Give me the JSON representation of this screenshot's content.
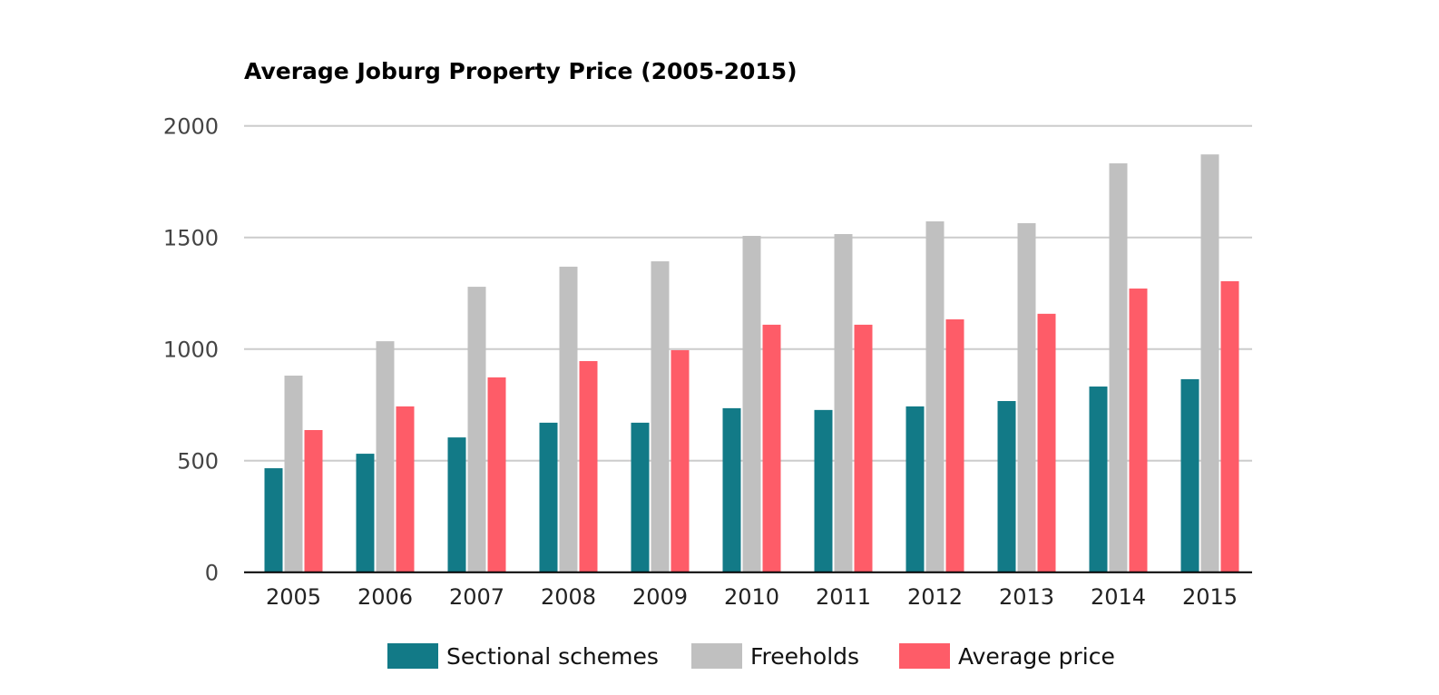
{
  "chart_data": {
    "type": "bar",
    "title": "Average Joburg Property Price (2005-2015)",
    "xlabel": "",
    "ylabel": "",
    "ylim": [
      0,
      2000
    ],
    "yticks": [
      0,
      500,
      1000,
      1500,
      2000
    ],
    "grid": true,
    "legend_position": "bottom-center",
    "categories": [
      "2005",
      "2006",
      "2007",
      "2008",
      "2009",
      "2010",
      "2011",
      "2012",
      "2013",
      "2014",
      "2015"
    ],
    "series": [
      {
        "name": "Sectional schemes",
        "color": "#127a87",
        "values": [
          466,
          531,
          604,
          670,
          670,
          735,
          727,
          743,
          767,
          832,
          865
        ]
      },
      {
        "name": "Freeholds",
        "color": "#c0c0c0",
        "values": [
          881,
          1035,
          1279,
          1369,
          1393,
          1507,
          1515,
          1572,
          1564,
          1832,
          1872
        ]
      },
      {
        "name": "Average price",
        "color": "#fe5c68",
        "values": [
          637,
          743,
          873,
          946,
          995,
          1109,
          1109,
          1133,
          1158,
          1271,
          1304
        ]
      }
    ]
  }
}
